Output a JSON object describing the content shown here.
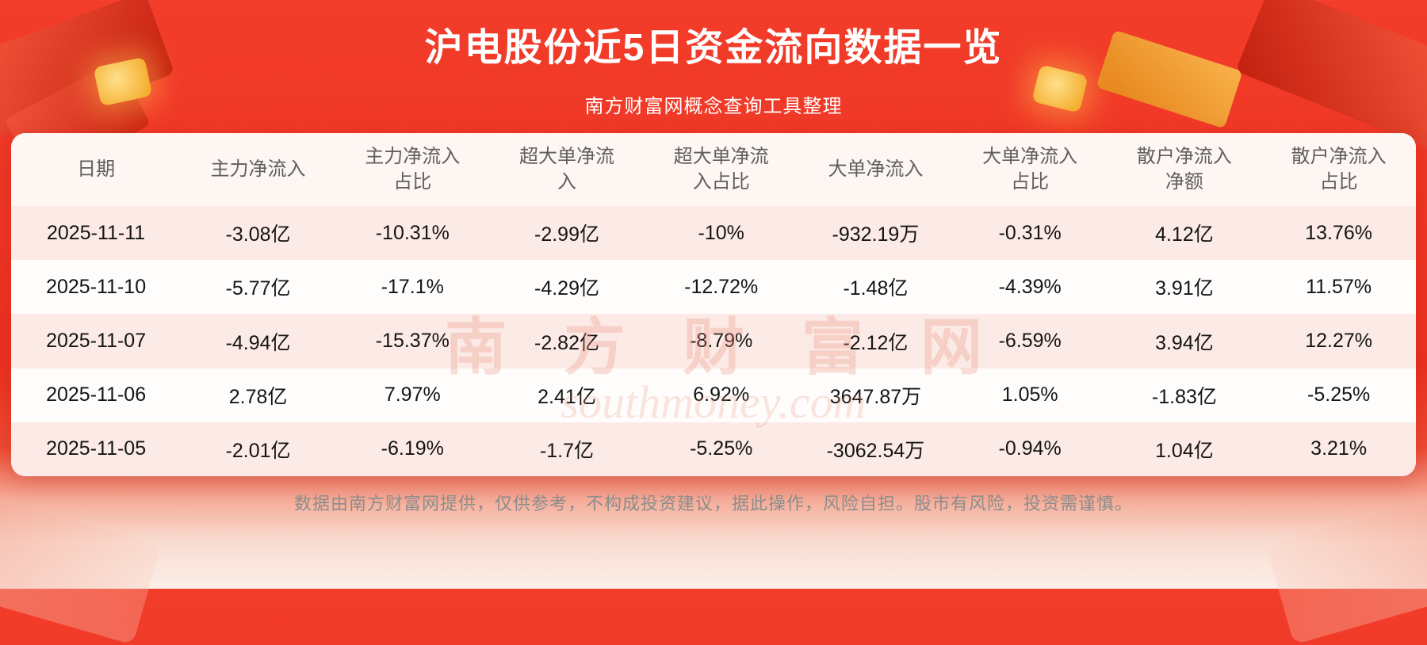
{
  "page": {
    "title": "沪电股份近5日资金流向数据一览",
    "subtitle": "南方财富网概念查询工具整理",
    "footer": "数据由南方财富网提供，仅供参考，不构成投资建议，据此操作，风险自担。股市有风险，投资需谨慎。"
  },
  "watermark": {
    "text_cn": "南方财富网",
    "text_en": "southmoney.com"
  },
  "colors": {
    "background_red": "#ee3423",
    "row_stripe_pink": "#fceae6",
    "header_text": "#5f5f5f",
    "body_text": "#141414",
    "footer_text": "#8c8c8c",
    "watermark_pink": "#e7927e",
    "title_white": "#ffffff"
  },
  "chart_data": {
    "type": "table",
    "title": "沪电股份近5日资金流向数据一览",
    "columns": [
      "日期",
      "主力净流入",
      "主力净流入占比",
      "超大单净流入",
      "超大单净流入占比",
      "大单净流入",
      "大单净流入占比",
      "散户净流入净额",
      "散户净流入占比"
    ],
    "rows": [
      [
        "2025-11-11",
        "-3.08亿",
        "-10.31%",
        "-2.99亿",
        "-10%",
        "-932.19万",
        "-0.31%",
        "4.12亿",
        "13.76%"
      ],
      [
        "2025-11-10",
        "-5.77亿",
        "-17.1%",
        "-4.29亿",
        "-12.72%",
        "-1.48亿",
        "-4.39%",
        "3.91亿",
        "11.57%"
      ],
      [
        "2025-11-07",
        "-4.94亿",
        "-15.37%",
        "-2.82亿",
        "-8.79%",
        "-2.12亿",
        "-6.59%",
        "3.94亿",
        "12.27%"
      ],
      [
        "2025-11-06",
        "2.78亿",
        "7.97%",
        "2.41亿",
        "6.92%",
        "3647.87万",
        "1.05%",
        "-1.83亿",
        "-5.25%"
      ],
      [
        "2025-11-05",
        "-2.01亿",
        "-6.19%",
        "-1.7亿",
        "-5.25%",
        "-3062.54万",
        "-0.94%",
        "1.04亿",
        "3.21%"
      ]
    ]
  }
}
